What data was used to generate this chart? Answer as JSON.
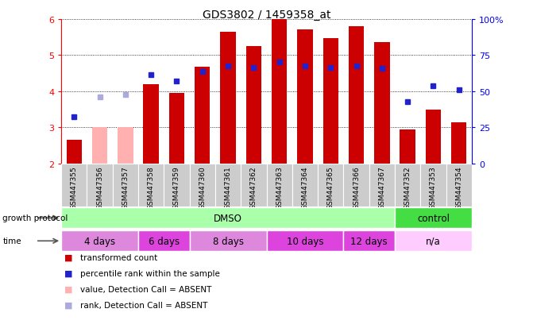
{
  "title": "GDS3802 / 1459358_at",
  "samples": [
    "GSM447355",
    "GSM447356",
    "GSM447357",
    "GSM447358",
    "GSM447359",
    "GSM447360",
    "GSM447361",
    "GSM447362",
    "GSM447363",
    "GSM447364",
    "GSM447365",
    "GSM447366",
    "GSM447367",
    "GSM447352",
    "GSM447353",
    "GSM447354"
  ],
  "bar_values": [
    2.65,
    3.0,
    3.0,
    4.2,
    3.95,
    4.68,
    5.65,
    5.25,
    6.0,
    5.72,
    5.47,
    5.8,
    5.35,
    2.95,
    3.5,
    3.15
  ],
  "bar_absent": [
    false,
    true,
    true,
    false,
    false,
    false,
    false,
    false,
    false,
    false,
    false,
    false,
    false,
    false,
    false,
    false
  ],
  "rank_values": [
    3.3,
    null,
    null,
    4.45,
    4.28,
    4.55,
    4.7,
    4.65,
    4.82,
    4.7,
    4.65,
    4.7,
    4.63,
    3.72,
    4.15,
    4.05
  ],
  "rank_absent_values": [
    null,
    3.85,
    3.9,
    null,
    null,
    null,
    null,
    null,
    null,
    null,
    null,
    null,
    null,
    null,
    null,
    null
  ],
  "ylim": [
    2.0,
    6.0
  ],
  "yticks_left": [
    2,
    3,
    4,
    5,
    6
  ],
  "yticks_right_vals": [
    0,
    25,
    50,
    75,
    100
  ],
  "yticks_right_labels": [
    "0",
    "25",
    "50",
    "75",
    "100%"
  ],
  "bar_color_normal": "#cc0000",
  "bar_color_absent": "#ffb0b0",
  "rank_color_normal": "#2222cc",
  "rank_color_absent": "#aaaadd",
  "grid_linestyle": "dotted",
  "sample_box_color": "#cccccc",
  "protocol_groups": [
    {
      "label": "DMSO",
      "start": 0,
      "end": 12,
      "color": "#aaffaa"
    },
    {
      "label": "control",
      "start": 13,
      "end": 15,
      "color": "#44dd44"
    }
  ],
  "time_groups": [
    {
      "label": "4 days",
      "start": 0,
      "end": 2,
      "color": "#dd88dd"
    },
    {
      "label": "6 days",
      "start": 3,
      "end": 4,
      "color": "#dd44dd"
    },
    {
      "label": "8 days",
      "start": 5,
      "end": 7,
      "color": "#dd88dd"
    },
    {
      "label": "10 days",
      "start": 8,
      "end": 10,
      "color": "#dd44dd"
    },
    {
      "label": "12 days",
      "start": 11,
      "end": 12,
      "color": "#dd44dd"
    },
    {
      "label": "n/a",
      "start": 13,
      "end": 15,
      "color": "#ffccff"
    }
  ],
  "legend_items": [
    {
      "label": "transformed count",
      "color": "#cc0000"
    },
    {
      "label": "percentile rank within the sample",
      "color": "#2222cc"
    },
    {
      "label": "value, Detection Call = ABSENT",
      "color": "#ffb0b0"
    },
    {
      "label": "rank, Detection Call = ABSENT",
      "color": "#aaaadd"
    }
  ],
  "left_labels": [
    {
      "text": "growth protocol",
      "row": "protocol"
    },
    {
      "text": "time",
      "row": "time"
    }
  ]
}
